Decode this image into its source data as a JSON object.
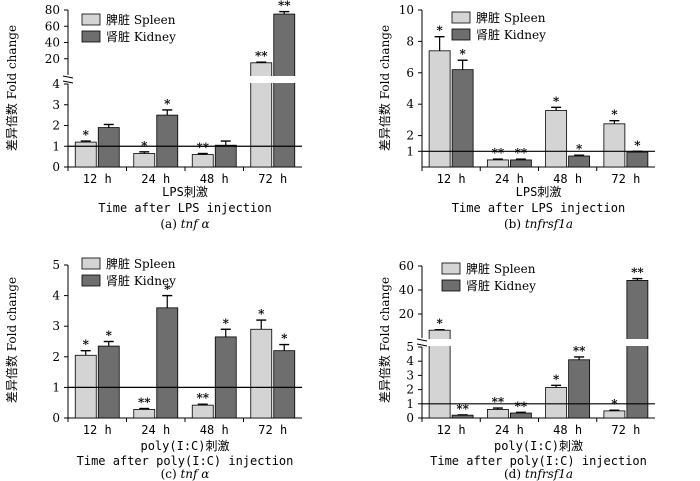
{
  "legend": {
    "spleen": "脾脏 Spleen",
    "kidney": "肾脏 Kidney"
  },
  "colors": {
    "spleen": "#d4d4d4",
    "kidney": "#6e6e6e",
    "axis": "#000000"
  },
  "y_axis_label": "差异倍数 Fold change",
  "chart_data": [
    {
      "type": "bar",
      "panel": "a",
      "categories": [
        "12 h",
        "24 h",
        "48 h",
        "72 h"
      ],
      "series": [
        {
          "name": "脾脏 Spleen",
          "values": [
            1.2,
            0.65,
            0.6,
            15
          ],
          "errors": [
            0.05,
            0.08,
            0.05,
            0.8
          ],
          "sig": [
            "*",
            "*",
            "**",
            "**"
          ]
        },
        {
          "name": "肾脏 Kidney",
          "values": [
            1.9,
            2.5,
            1.05,
            75
          ],
          "errors": [
            0.15,
            0.25,
            0.2,
            3
          ],
          "sig": [
            "",
            "*",
            "",
            "**"
          ]
        }
      ],
      "baseline": 1,
      "broken_axis": {
        "lower": [
          0,
          4
        ],
        "upper": [
          0,
          80
        ],
        "cut_upper": 15
      },
      "yticks_lower": [
        0,
        1,
        2,
        3,
        4
      ],
      "yticks_upper": [
        20,
        40,
        60,
        80
      ],
      "xlabel_cn": "LPS刺激",
      "xlabel_en": "Time after LPS injection",
      "caption_prefix": "(a) ",
      "caption_gene": "tnf α"
    },
    {
      "type": "bar",
      "panel": "b",
      "categories": [
        "12 h",
        "24 h",
        "48 h",
        "72 h"
      ],
      "series": [
        {
          "name": "脾脏 Spleen",
          "values": [
            7.4,
            0.45,
            3.6,
            2.75
          ],
          "errors": [
            0.9,
            0.05,
            0.2,
            0.2
          ],
          "sig": [
            "*",
            "**",
            "*",
            "*"
          ]
        },
        {
          "name": "肾脏 Kidney",
          "values": [
            6.2,
            0.45,
            0.7,
            0.95
          ],
          "errors": [
            0.6,
            0.05,
            0.05,
            0.05
          ],
          "sig": [
            "*",
            "**",
            "*",
            "*"
          ]
        }
      ],
      "baseline": 1,
      "broken_axis": null,
      "ylim": [
        0,
        10
      ],
      "yticks": [
        1,
        2,
        4,
        6,
        8,
        10
      ],
      "xlabel_cn": "LPS刺激",
      "xlabel_en": "Time after LPS injection",
      "caption_prefix": "(b) ",
      "caption_gene": "tnfrsf1a"
    },
    {
      "type": "bar",
      "panel": "c",
      "categories": [
        "12 h",
        "24 h",
        "48 h",
        "72 h"
      ],
      "series": [
        {
          "name": "脾脏 Spleen",
          "values": [
            2.05,
            0.28,
            0.42,
            2.9
          ],
          "errors": [
            0.15,
            0.03,
            0.03,
            0.3
          ],
          "sig": [
            "*",
            "**",
            "**",
            "*"
          ]
        },
        {
          "name": "肾脏 Kidney",
          "values": [
            2.35,
            3.6,
            2.65,
            2.2
          ],
          "errors": [
            0.15,
            0.4,
            0.25,
            0.2
          ],
          "sig": [
            "*",
            "*",
            "*",
            "*"
          ]
        }
      ],
      "baseline": 1,
      "broken_axis": null,
      "ylim": [
        0,
        5
      ],
      "yticks": [
        0,
        1,
        2,
        3,
        4,
        5
      ],
      "xlabel_cn": "poly(I:C)刺激",
      "xlabel_en": "Time after poly(I:C) injection",
      "caption_prefix": "(c) ",
      "caption_gene": "tnf α"
    },
    {
      "type": "bar",
      "panel": "d",
      "categories": [
        "12 h",
        "24 h",
        "48 h",
        "72 h"
      ],
      "series": [
        {
          "name": "脾脏 Spleen",
          "values": [
            6.5,
            0.6,
            2.15,
            0.5
          ],
          "errors": [
            0.4,
            0.1,
            0.15,
            0.05
          ],
          "sig": [
            "*",
            "**",
            "*",
            "*"
          ]
        },
        {
          "name": "肾脏 Kidney",
          "values": [
            0.2,
            0.35,
            4.1,
            48
          ],
          "errors": [
            0.02,
            0.05,
            0.2,
            1.5
          ],
          "sig": [
            "**",
            "**",
            "**",
            "**"
          ]
        }
      ],
      "baseline": 1,
      "broken_axis": {
        "lower": [
          0,
          5
        ],
        "upper": [
          0,
          60
        ],
        "cut_upper": 8
      },
      "yticks_lower": [
        0,
        1,
        2,
        3,
        4,
        5
      ],
      "yticks_upper": [
        20,
        40,
        60
      ],
      "xlabel_cn": "poly(I:C)刺激",
      "xlabel_en": "Time after poly(I:C) injection",
      "caption_prefix": "(d) ",
      "caption_gene": "tnfrsf1a"
    }
  ]
}
